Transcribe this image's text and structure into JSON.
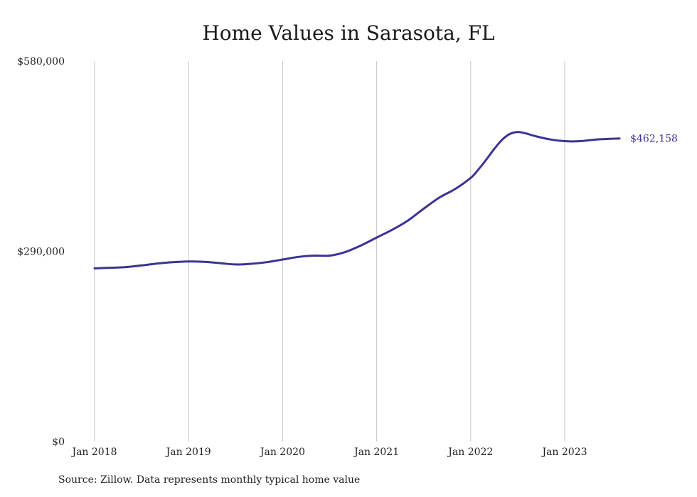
{
  "chart_data": {
    "type": "line",
    "title": "Home Values in Sarasota, FL",
    "xlabel": "",
    "ylabel": "",
    "ylim": [
      0,
      580000
    ],
    "y_ticks": [
      {
        "value": 0,
        "label": "$0"
      },
      {
        "value": 290000,
        "label": "$290,000"
      },
      {
        "value": 580000,
        "label": "$580,000"
      }
    ],
    "x_ticks": [
      {
        "date": "2018-01",
        "label": "Jan 2018"
      },
      {
        "date": "2019-01",
        "label": "Jan 2019"
      },
      {
        "date": "2020-01",
        "label": "Jan 2020"
      },
      {
        "date": "2021-01",
        "label": "Jan 2021"
      },
      {
        "date": "2022-01",
        "label": "Jan 2022"
      },
      {
        "date": "2023-01",
        "label": "Jan 2023"
      }
    ],
    "grid": {
      "vertical": true,
      "horizontal": false
    },
    "line_color": "#3b3494",
    "end_label": "$462,158",
    "series": [
      {
        "values": [
          {
            "date": "2018-01",
            "y": 264000
          },
          {
            "date": "2018-03",
            "y": 265000
          },
          {
            "date": "2018-05",
            "y": 266000
          },
          {
            "date": "2018-07",
            "y": 268500
          },
          {
            "date": "2018-09",
            "y": 271500
          },
          {
            "date": "2018-11",
            "y": 273500
          },
          {
            "date": "2019-01",
            "y": 274500
          },
          {
            "date": "2019-03",
            "y": 274000
          },
          {
            "date": "2019-05",
            "y": 272000
          },
          {
            "date": "2019-07",
            "y": 270000
          },
          {
            "date": "2019-09",
            "y": 271000
          },
          {
            "date": "2019-11",
            "y": 273500
          },
          {
            "date": "2020-01",
            "y": 277500
          },
          {
            "date": "2020-03",
            "y": 281500
          },
          {
            "date": "2020-05",
            "y": 283500
          },
          {
            "date": "2020-07",
            "y": 283500
          },
          {
            "date": "2020-09",
            "y": 289000
          },
          {
            "date": "2020-11",
            "y": 299000
          },
          {
            "date": "2021-01",
            "y": 311000
          },
          {
            "date": "2021-03",
            "y": 323000
          },
          {
            "date": "2021-05",
            "y": 337000
          },
          {
            "date": "2021-07",
            "y": 355000
          },
          {
            "date": "2021-09",
            "y": 372000
          },
          {
            "date": "2021-11",
            "y": 385000
          },
          {
            "date": "2022-01",
            "y": 402000
          },
          {
            "date": "2022-02",
            "y": 415000
          },
          {
            "date": "2022-03",
            "y": 430000
          },
          {
            "date": "2022-04",
            "y": 446000
          },
          {
            "date": "2022-05",
            "y": 460000
          },
          {
            "date": "2022-06",
            "y": 469000
          },
          {
            "date": "2022-07",
            "y": 472000
          },
          {
            "date": "2022-08",
            "y": 470000
          },
          {
            "date": "2022-09",
            "y": 466500
          },
          {
            "date": "2022-11",
            "y": 461000
          },
          {
            "date": "2023-01",
            "y": 458000
          },
          {
            "date": "2023-03",
            "y": 458000
          },
          {
            "date": "2023-05",
            "y": 460500
          },
          {
            "date": "2023-08",
            "y": 462158
          }
        ]
      }
    ]
  },
  "footer": {
    "source": "Source: Zillow. Data represents monthly typical home value"
  }
}
